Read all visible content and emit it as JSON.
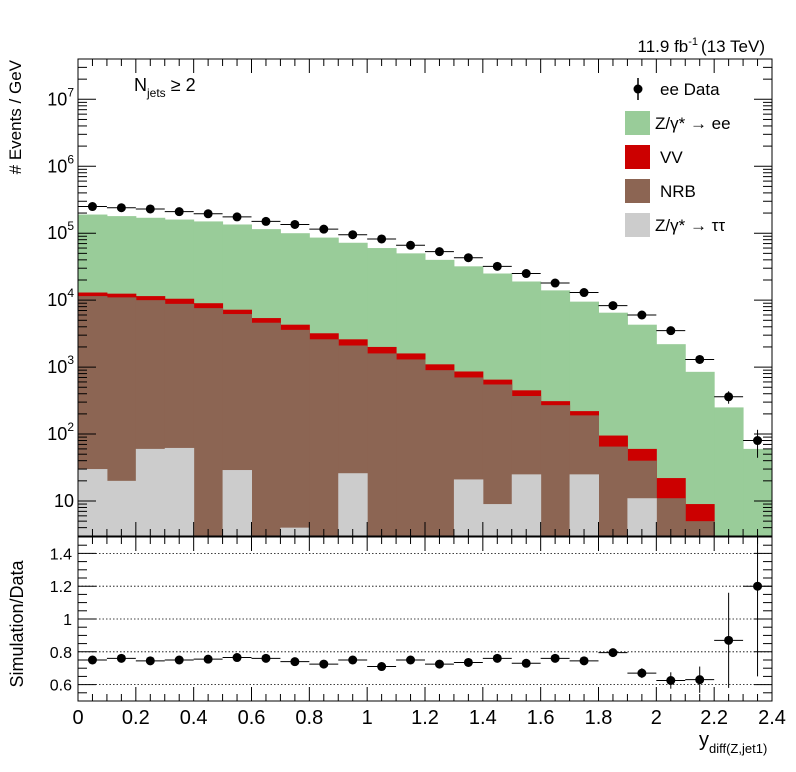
{
  "header": {
    "lumi": "11.9 fb",
    "lumi_sup": "-1",
    "energy": "(13 TeV)"
  },
  "selection": {
    "label_main": "N",
    "label_sub": "jets",
    "label_rest": " ≥ 2"
  },
  "axes": {
    "top_ylabel": "# Events / GeV",
    "bottom_ylabel": "Simulation/Data",
    "xlabel_main": "y",
    "xlabel_sub": "diff(Z,jet1)"
  },
  "legend": {
    "data": "ee Data",
    "dy_ee": "Z/γ* → ee",
    "vv": "VV",
    "nrb": "NRB",
    "dy_tautau": "Z/γ* → ττ"
  },
  "colors": {
    "dy_ee": "#99cc99",
    "vv": "#cc0000",
    "nrb": "#8c6553",
    "dy_tautau": "#cccccc",
    "data": "#000000"
  },
  "chart_data": [
    {
      "type": "bar",
      "stacked": true,
      "log_y": true,
      "xlim": [
        0,
        2.4
      ],
      "ylim": [
        3,
        40000000
      ],
      "bin_width": 0.1,
      "x": [
        0.05,
        0.15,
        0.25,
        0.35,
        0.45,
        0.55,
        0.65,
        0.75,
        0.85,
        0.95,
        1.05,
        1.15,
        1.25,
        1.35,
        1.45,
        1.55,
        1.65,
        1.75,
        1.85,
        1.95,
        2.05,
        2.15,
        2.25,
        2.35
      ],
      "x_ticks": [
        "0",
        "0.2",
        "0.4",
        "0.6",
        "0.8",
        "1",
        "1.2",
        "1.4",
        "1.6",
        "1.8",
        "2",
        "2.2",
        "2.4"
      ],
      "y_ticks": [
        "10",
        "10^2",
        "10^3",
        "10^4",
        "10^5",
        "10^6",
        "10^7"
      ],
      "stack_cumulative": [
        {
          "name": "Z/γ* → ττ",
          "values": [
            30,
            20,
            60,
            62,
            3,
            29,
            3,
            4,
            3,
            26,
            3,
            3,
            3,
            21,
            9,
            25,
            3,
            25,
            3,
            11,
            3,
            3,
            3,
            3
          ]
        },
        {
          "name": "NRB",
          "values": [
            11500,
            11000,
            10000,
            8800,
            7600,
            6200,
            4600,
            3600,
            2600,
            2100,
            1600,
            1300,
            900,
            700,
            550,
            370,
            270,
            190,
            65,
            40,
            11,
            5,
            3,
            3
          ]
        },
        {
          "name": "VV",
          "values": [
            13000,
            12500,
            11500,
            10500,
            9000,
            7200,
            5400,
            4300,
            3200,
            2600,
            2000,
            1600,
            1100,
            860,
            650,
            450,
            310,
            220,
            95,
            60,
            22,
            9,
            3,
            3
          ]
        },
        {
          "name": "Z/γ* → ee",
          "values": [
            190000,
            180000,
            170000,
            160000,
            150000,
            135000,
            115000,
            100000,
            86000,
            72000,
            60000,
            50000,
            40000,
            32000,
            25000,
            19000,
            14000,
            9500,
            6500,
            4300,
            2200,
            850,
            250,
            60
          ]
        }
      ],
      "data_series": {
        "name": "ee Data",
        "values": [
          250000,
          240000,
          230000,
          210000,
          195000,
          175000,
          150000,
          135000,
          115000,
          95000,
          82000,
          66000,
          53000,
          43000,
          32000,
          25000,
          18000,
          13000,
          8300,
          6000,
          3500,
          1300,
          360,
          80
        ]
      }
    },
    {
      "type": "scatter",
      "xlim": [
        0,
        2.4
      ],
      "ylim": [
        0.5,
        1.5
      ],
      "x": [
        0.05,
        0.15,
        0.25,
        0.35,
        0.45,
        0.55,
        0.65,
        0.75,
        0.85,
        0.95,
        1.05,
        1.15,
        1.25,
        1.35,
        1.45,
        1.55,
        1.65,
        1.75,
        1.85,
        1.95,
        2.05,
        2.15,
        2.25,
        2.35
      ],
      "values": [
        0.75,
        0.76,
        0.745,
        0.75,
        0.755,
        0.765,
        0.76,
        0.74,
        0.725,
        0.75,
        0.71,
        0.75,
        0.725,
        0.735,
        0.76,
        0.73,
        0.76,
        0.745,
        0.795,
        0.67,
        0.625,
        0.63,
        0.87,
        1.2
      ],
      "errors": [
        0.004,
        0.004,
        0.004,
        0.004,
        0.004,
        0.004,
        0.005,
        0.005,
        0.005,
        0.006,
        0.007,
        0.008,
        0.009,
        0.01,
        0.012,
        0.014,
        0.017,
        0.02,
        0.025,
        0.03,
        0.05,
        0.08,
        0.29,
        0.55
      ],
      "y_ticks": [
        "0.6",
        "0.8",
        "1",
        "1.2",
        "1.4"
      ],
      "gridlines": [
        0.6,
        0.8,
        1.0,
        1.2,
        1.4
      ]
    }
  ]
}
